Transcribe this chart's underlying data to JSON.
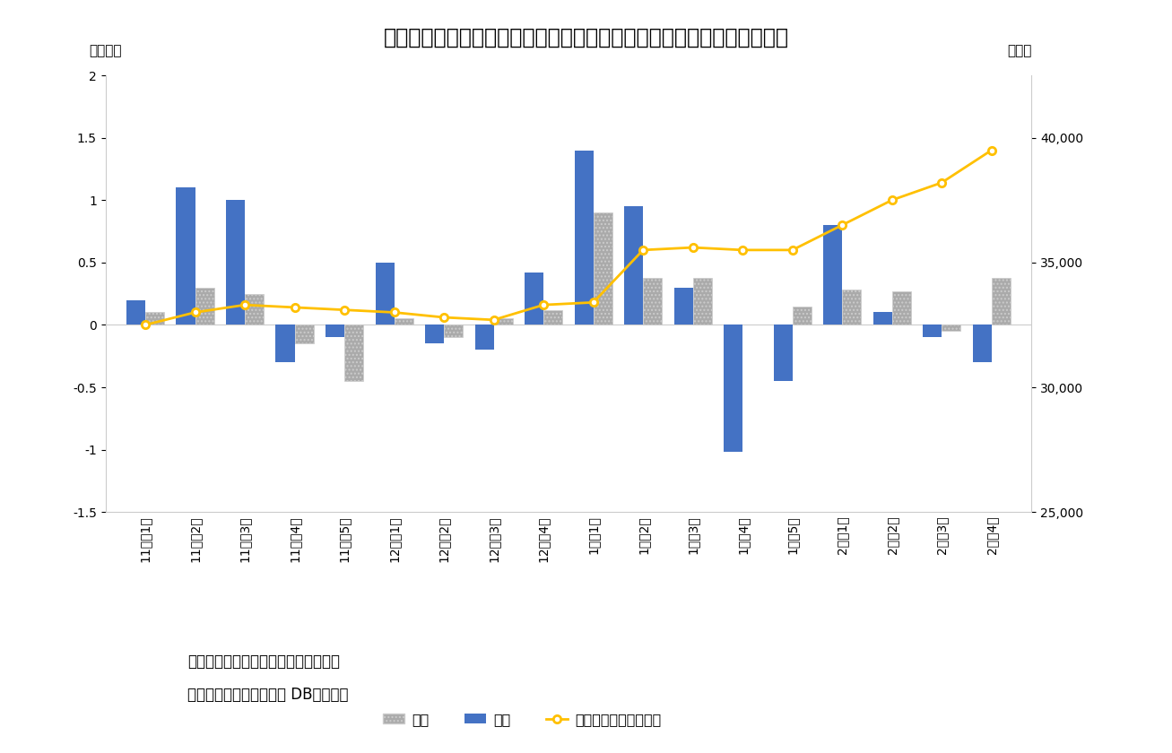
{
  "title": "図表２　海外投賄家は４カ月連続買い越しも、現物は第３週に売り越し",
  "categories": [
    "11月第1週",
    "11月第2週",
    "11月第3週",
    "11月第4週",
    "11月第5週",
    "12月第1週",
    "12月第2週",
    "12月第3週",
    "12月第4週",
    "1月第1週",
    "1月第2週",
    "1月第3週",
    "1月第4週",
    "1月第5週",
    "2月第1週",
    "2月第2週",
    "2月第3週",
    "2月第4週"
  ],
  "genbutsu": [
    0.1,
    0.3,
    0.25,
    -0.15,
    -0.45,
    0.05,
    -0.1,
    0.05,
    0.12,
    0.9,
    0.38,
    0.38,
    0.0,
    0.15,
    0.28,
    0.27,
    -0.05,
    0.38
  ],
  "sakimono": [
    0.2,
    1.1,
    1.0,
    -0.3,
    -0.1,
    0.5,
    -0.15,
    -0.2,
    0.42,
    1.4,
    0.95,
    0.3,
    -1.02,
    -0.45,
    0.8,
    0.1,
    -0.1,
    -0.3
  ],
  "nikkei": [
    32500,
    33000,
    33300,
    33200,
    33100,
    33000,
    32800,
    32700,
    33300,
    33400,
    35500,
    35600,
    35500,
    35500,
    36500,
    37500,
    38200,
    39500
  ],
  "left_ylim": [
    -1.5,
    2.0
  ],
  "left_yticks": [
    -1.5,
    -1.0,
    -0.5,
    0.0,
    0.5,
    1.0,
    1.5,
    2.0
  ],
  "right_ylim": [
    25000,
    42500
  ],
  "right_yticks": [
    25000,
    30000,
    35000,
    40000
  ],
  "left_ylabel": "〈兆円〉",
  "right_ylabel": "〈円〉",
  "genbutsu_color": "#aaaaaa",
  "sakimono_color": "#4472c4",
  "nikkei_color": "#ffc000",
  "legend_genbutsu": "現物",
  "legend_sakimono": "先物",
  "legend_nikkei": "日経平均株価〈右軸〉",
  "note1": "（注）海外投賄家の現物と先物、週次",
  "note2": "（資料）ニッセイ基礎研 DBから作成",
  "background_color": "#ffffff",
  "title_fontsize": 17,
  "tick_fontsize": 10,
  "note_fontsize": 12
}
